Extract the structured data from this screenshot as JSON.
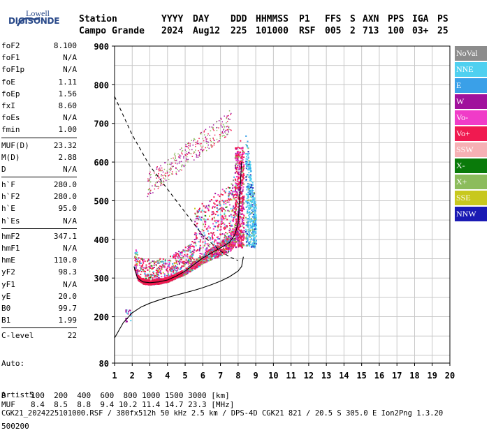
{
  "logo": {
    "line1": "Lowell",
    "line2": "DIGISONDE"
  },
  "header": {
    "labels": [
      "Station",
      "YYYY",
      "DAY",
      "DDD",
      "HHMMSS",
      "P1",
      "FFS",
      "S",
      "AXN",
      "PPS",
      "IGA",
      "PS"
    ],
    "station": "Campo Grande",
    "values": [
      "2024",
      "Aug12",
      "225",
      "101000",
      "RSF",
      "005",
      "2",
      "713",
      "100",
      "03+",
      "25"
    ]
  },
  "params": [
    [
      {
        "k": "foF2",
        "v": "8.100"
      },
      {
        "k": "foF1",
        "v": "N/A"
      },
      {
        "k": "foF1p",
        "v": "N/A"
      },
      {
        "k": "foE",
        "v": "1.11"
      },
      {
        "k": "foEp",
        "v": "1.56"
      },
      {
        "k": "fxI",
        "v": "8.60"
      },
      {
        "k": "foEs",
        "v": "N/A"
      },
      {
        "k": "fmin",
        "v": "1.00"
      }
    ],
    [
      {
        "k": "MUF(D)",
        "v": "23.32"
      },
      {
        "k": "M(D)",
        "v": "2.88"
      },
      {
        "k": "D",
        "v": "N/A"
      }
    ],
    [
      {
        "k": "h`F",
        "v": "280.0"
      },
      {
        "k": "h`F2",
        "v": "280.0"
      },
      {
        "k": "h`E",
        "v": "95.0"
      },
      {
        "k": "h`Es",
        "v": "N/A"
      }
    ],
    [
      {
        "k": "hmF2",
        "v": "347.1"
      },
      {
        "k": "hmF1",
        "v": "N/A"
      },
      {
        "k": "hmE",
        "v": "110.0"
      },
      {
        "k": "yF2",
        "v": "98.3"
      },
      {
        "k": "yF1",
        "v": "N/A"
      },
      {
        "k": "yE",
        "v": "20.0"
      },
      {
        "k": "B0",
        "v": "99.7"
      },
      {
        "k": "B1",
        "v": "1.99"
      }
    ],
    [
      {
        "k": "C-level",
        "v": "22"
      }
    ]
  ],
  "auto": {
    "line1": "Auto:",
    "line2": "Artist5",
    "line3": "500200"
  },
  "legend": [
    {
      "label": "NoVal",
      "color": "#8c8c8c"
    },
    {
      "label": "NNE",
      "color": "#4fd0f0"
    },
    {
      "label": "E",
      "color": "#3aa0e8"
    },
    {
      "label": "W",
      "color": "#a0109c"
    },
    {
      "label": "Vo-",
      "color": "#f03cc8"
    },
    {
      "label": "Vo+",
      "color": "#f01a50"
    },
    {
      "label": "SSW",
      "color": "#f6b0b4"
    },
    {
      "label": "X-",
      "color": "#0a7a0a"
    },
    {
      "label": "X+",
      "color": "#8cbc5c"
    },
    {
      "label": "SSE",
      "color": "#c8c81e"
    },
    {
      "label": "NNW",
      "color": "#1a1ab4"
    }
  ],
  "chart_data": {
    "type": "scatter",
    "x_ticks": [
      "1",
      "2",
      "3",
      "4",
      "5",
      "6",
      "7",
      "8",
      "9",
      "10",
      "11",
      "12",
      "13",
      "14",
      "15",
      "16",
      "17",
      "18",
      "19",
      "20"
    ],
    "y_ticks": [
      "80",
      "200",
      "300",
      "400",
      "500",
      "600",
      "700",
      "800",
      "900"
    ],
    "xlim": [
      1,
      20
    ],
    "ylim": [
      80,
      900
    ],
    "grid": true,
    "traces": [
      {
        "name": "F2-trace",
        "points": [
          [
            2.1,
            330
          ],
          [
            2.3,
            300
          ],
          [
            2.6,
            290
          ],
          [
            3.0,
            288
          ],
          [
            3.5,
            290
          ],
          [
            4.0,
            295
          ],
          [
            4.5,
            305
          ],
          [
            5.0,
            318
          ],
          [
            5.5,
            335
          ],
          [
            6.0,
            352
          ],
          [
            6.5,
            365
          ],
          [
            7.0,
            378
          ],
          [
            7.5,
            392
          ],
          [
            7.8,
            410
          ],
          [
            8.0,
            440
          ],
          [
            8.1,
            520
          ],
          [
            8.2,
            600
          ]
        ]
      },
      {
        "name": "MUF-dashed",
        "points": [
          [
            1,
            770
          ],
          [
            1.5,
            720
          ],
          [
            2,
            670
          ],
          [
            2.5,
            630
          ],
          [
            3,
            590
          ],
          [
            3.5,
            560
          ],
          [
            4,
            530
          ],
          [
            4.5,
            500
          ],
          [
            5,
            470
          ],
          [
            5.5,
            440
          ],
          [
            6,
            410
          ],
          [
            6.5,
            390
          ],
          [
            7,
            370
          ],
          [
            7.5,
            355
          ],
          [
            8,
            345
          ]
        ]
      },
      {
        "name": "profile",
        "points": [
          [
            1,
            145
          ],
          [
            1.5,
            185
          ],
          [
            2,
            210
          ],
          [
            2.5,
            225
          ],
          [
            3,
            235
          ],
          [
            3.5,
            243
          ],
          [
            4,
            250
          ],
          [
            4.5,
            256
          ],
          [
            5,
            262
          ],
          [
            5.5,
            268
          ],
          [
            6,
            275
          ],
          [
            6.5,
            283
          ],
          [
            7,
            292
          ],
          [
            7.5,
            303
          ],
          [
            8,
            318
          ],
          [
            8.2,
            330
          ],
          [
            8.3,
            355
          ]
        ]
      }
    ]
  },
  "table": {
    "row1_label": "D",
    "row1": "100  200  400  600  800 1000 1500 3000 [km]",
    "row2_label": "MUF",
    "row2": "8.4  8.5  8.8  9.4 10.2 11.4 14.7 23.3 [MHz]"
  },
  "footer": "CGK21_2024225101000.RSF / 380fx512h 50 kHz 2.5 km / DPS-4D CGK21 821 / 20.5 S 305.0 E Ion2Png 1.3.20"
}
